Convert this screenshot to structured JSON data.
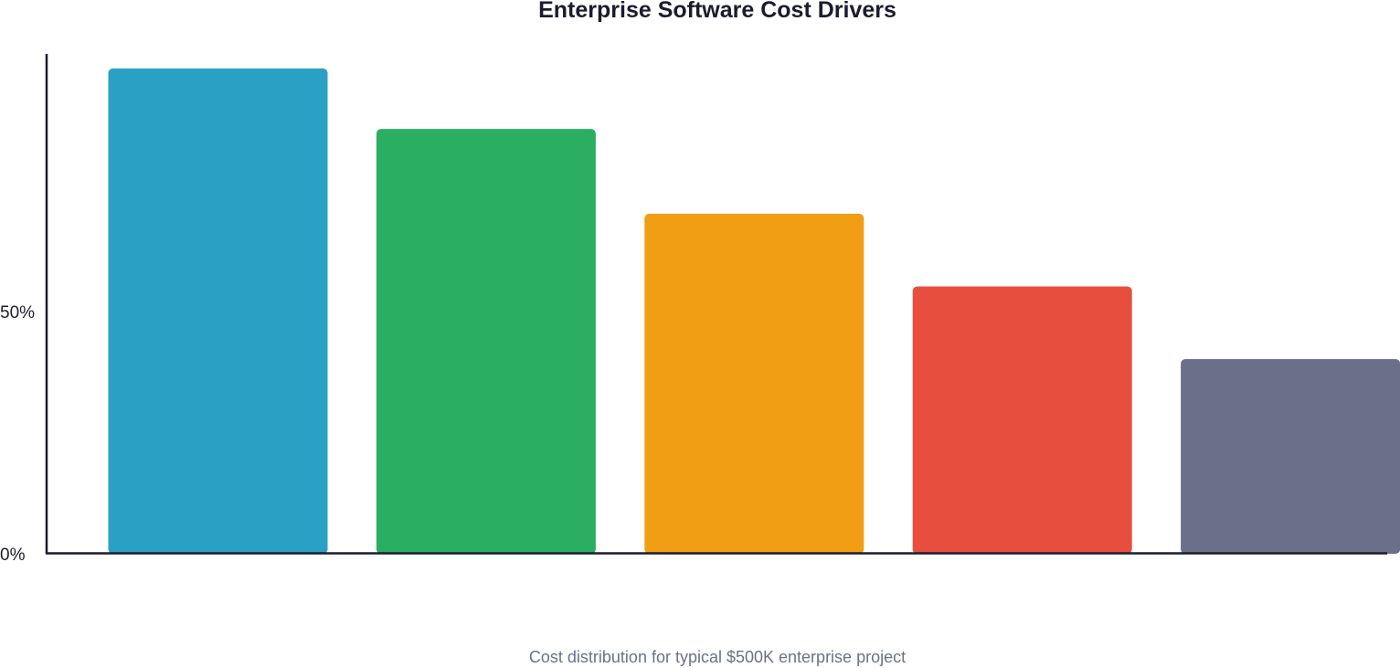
{
  "chart_data": {
    "type": "bar",
    "title": "Enterprise Software Cost Drivers",
    "subtitle": "Cost distribution for typical $500K enterprise project",
    "xlabel": "",
    "ylabel": "",
    "ylim": [
      0,
      103
    ],
    "y_ticks": [
      {
        "value": 0,
        "label": "0%"
      },
      {
        "value": 50,
        "label": "50%"
      }
    ],
    "grid": false,
    "legend": "none",
    "values": [
      100,
      87.5,
      70,
      55,
      40
    ],
    "colors": [
      "#2aa0c5",
      "#29ae62",
      "#f29e15",
      "#e74e3e",
      "#6b6f89"
    ]
  }
}
